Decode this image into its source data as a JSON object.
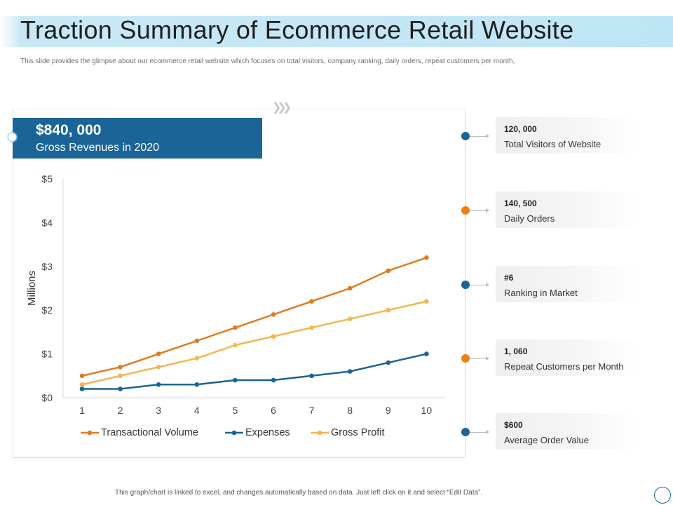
{
  "slide": {
    "title": "Traction Summary of Ecommerce Retail Website",
    "subtitle": "This slide provides the glimpse about our ecommerce retail website which focuses on total visitors, company ranking, daily orders, repeat customers per month,",
    "footnote": "This graph/chart is linked to excel,  and changes automatically based on data. Just left click on it and select “Edit Data”."
  },
  "revenue": {
    "value": "$840, 000",
    "label": "Gross Revenues in 2020",
    "color": "#1a6498"
  },
  "kpis": [
    {
      "value": "120, 000",
      "label": "Total Visitors of Website",
      "dot_color": "#1a6498"
    },
    {
      "value": "140, 500",
      "label": "Daily Orders",
      "dot_color": "#e8821c"
    },
    {
      "value": "#6",
      "label": "Ranking in Market",
      "dot_color": "#1a6498"
    },
    {
      "value": "1, 060",
      "label": "Repeat Customers per Month",
      "dot_color": "#e8821c"
    },
    {
      "value": "$600",
      "label": "Average Order Value",
      "dot_color": "#1a6498"
    }
  ],
  "chart_data": {
    "type": "line",
    "x": [
      1,
      2,
      3,
      4,
      5,
      6,
      7,
      8,
      9,
      10
    ],
    "x_tick_labels": [
      "1",
      "2",
      "3",
      "4",
      "5",
      "6",
      "7",
      "8",
      "9",
      "10"
    ],
    "ylabel": "Millions",
    "ylim": [
      0,
      5
    ],
    "y_ticks": [
      0,
      1,
      2,
      3,
      4,
      5
    ],
    "y_tick_labels": [
      "$0",
      "$1",
      "$2",
      "$3",
      "$4",
      "$5"
    ],
    "grid": false,
    "legend_position": "bottom",
    "series": [
      {
        "name": "Transactional Volume",
        "color": "#e07b1f",
        "values": [
          0.5,
          0.7,
          1.0,
          1.3,
          1.6,
          1.9,
          2.2,
          2.5,
          2.9,
          3.2
        ]
      },
      {
        "name": "Expenses",
        "color": "#1a6498",
        "values": [
          0.2,
          0.2,
          0.3,
          0.3,
          0.4,
          0.4,
          0.5,
          0.6,
          0.8,
          1.0
        ]
      },
      {
        "name": "Gross Profit",
        "color": "#f4b552",
        "values": [
          0.3,
          0.5,
          0.7,
          0.9,
          1.2,
          1.4,
          1.6,
          1.8,
          2.0,
          2.2
        ]
      }
    ]
  }
}
